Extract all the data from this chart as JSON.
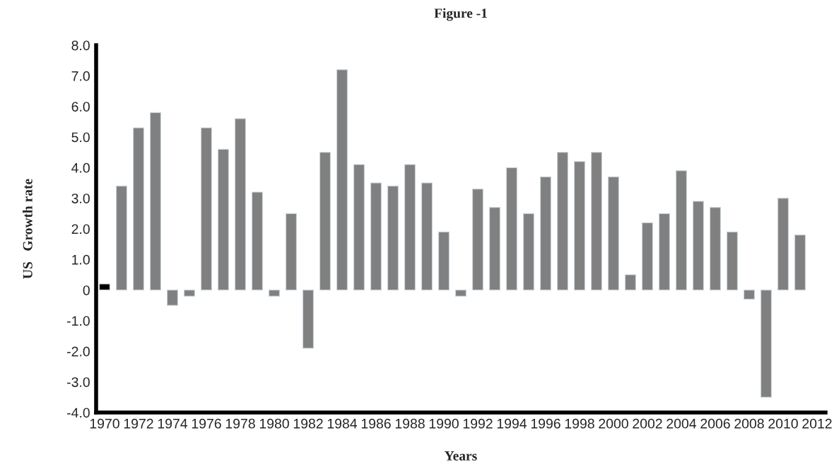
{
  "chart_data": {
    "type": "bar",
    "title": "Figure -1",
    "xlabel": "Years",
    "ylabel": "US   Growth rate",
    "categories": [
      "1970",
      null,
      "1972",
      null,
      "1974",
      null,
      "1976",
      null,
      "1978",
      null,
      "1980",
      null,
      "1982",
      null,
      "1984",
      null,
      "1986",
      null,
      "1988",
      null,
      "1990",
      null,
      "1992",
      null,
      "1994",
      null,
      "1996",
      null,
      "1998",
      null,
      "2000",
      null,
      "2002",
      null,
      "2004",
      null,
      "2006",
      null,
      "2008",
      null,
      "2010",
      null,
      "2012"
    ],
    "values": [
      0.2,
      3.4,
      5.3,
      5.8,
      -0.5,
      -0.2,
      5.3,
      4.6,
      5.6,
      3.2,
      -0.2,
      2.5,
      -1.9,
      4.5,
      7.2,
      4.1,
      3.5,
      3.4,
      4.1,
      3.5,
      1.9,
      -0.2,
      3.3,
      2.7,
      4.0,
      2.5,
      3.7,
      4.5,
      4.2,
      4.5,
      3.7,
      0.5,
      2.2,
      2.5,
      3.9,
      2.9,
      2.7,
      1.9,
      -0.3,
      -3.5,
      3.0,
      1.8,
      null
    ],
    "colors": [
      "#000000",
      "#808080",
      "#808080",
      "#808080",
      "#808080",
      "#808080",
      "#808080",
      "#808080",
      "#808080",
      "#808080",
      "#808080",
      "#808080",
      "#808080",
      "#808080",
      "#808080",
      "#808080",
      "#808080",
      "#808080",
      "#808080",
      "#808080",
      "#808080",
      "#808080",
      "#808080",
      "#808080",
      "#808080",
      "#808080",
      "#808080",
      "#808080",
      "#808080",
      "#808080",
      "#808080",
      "#808080",
      "#808080",
      "#808080",
      "#808080",
      "#808080",
      "#808080",
      "#808080",
      "#808080",
      "#808080",
      "#808080",
      "#808080",
      "#808080"
    ],
    "ylim": [
      -4,
      8
    ],
    "yticks": [
      {
        "value": -4,
        "label": "-4.0"
      },
      {
        "value": -3,
        "label": "-3.0"
      },
      {
        "value": -2,
        "label": "-2.0"
      },
      {
        "value": -1,
        "label": "-1.0"
      },
      0,
      {
        "value": 1,
        "label": "1.0"
      },
      {
        "value": 2,
        "label": "2.0"
      },
      {
        "value": 3,
        "label": "3.0"
      },
      {
        "value": 4,
        "label": "4.0"
      },
      {
        "value": 5,
        "label": "5.0"
      },
      {
        "value": 6,
        "label": "6.0"
      },
      {
        "value": 7,
        "label": "7.0"
      },
      {
        "value": 8,
        "label": "8.0"
      }
    ],
    "grid": false,
    "legend": false
  }
}
